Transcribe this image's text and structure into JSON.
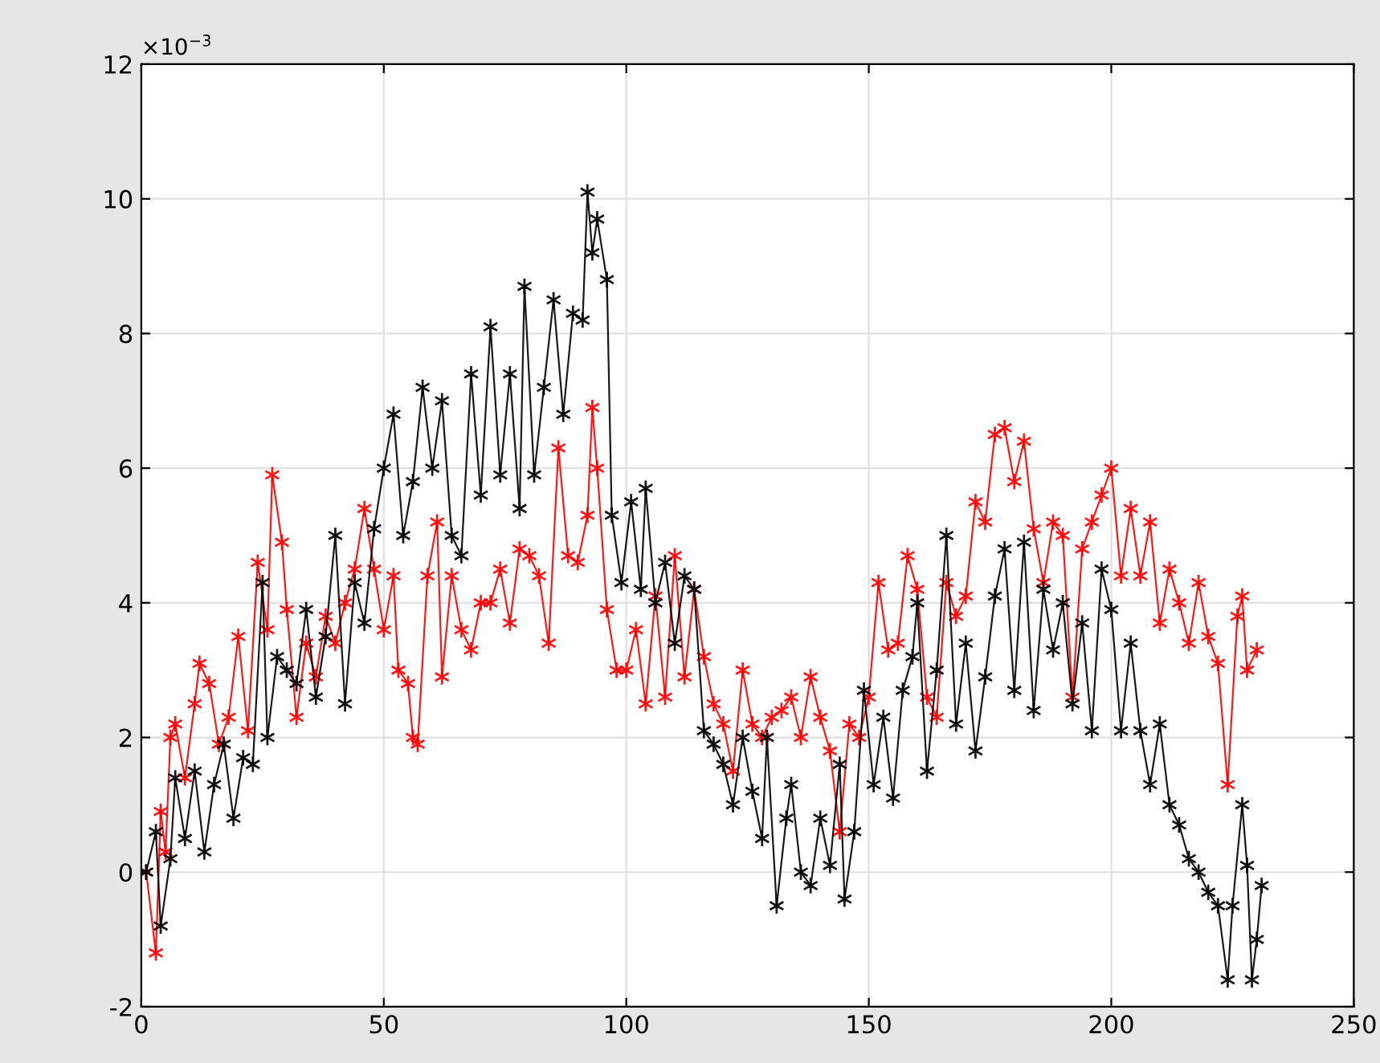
{
  "chart_data": {
    "type": "line",
    "marker": "cross",
    "grid": true,
    "xlim": [
      0,
      250
    ],
    "xticks": [
      0,
      50,
      100,
      150,
      200,
      250
    ],
    "ylim": [
      -2,
      12
    ],
    "yticks": [
      -2,
      0,
      2,
      4,
      6,
      8,
      10,
      12
    ],
    "annotations": [
      "×10$^{−3}$"
    ],
    "series": [
      {
        "color": "#ff0000",
        "x": [
          1,
          3,
          4,
          5,
          6,
          7,
          9,
          11,
          12,
          14,
          16,
          18,
          20,
          22,
          24,
          26,
          27,
          29,
          30,
          32,
          34,
          36,
          38,
          40,
          42,
          44,
          46,
          48,
          50,
          52,
          53,
          55,
          56,
          57,
          59,
          61,
          62,
          64,
          66,
          68,
          70,
          72,
          74,
          76,
          78,
          80,
          82,
          84,
          86,
          88,
          90,
          92,
          93,
          94,
          96,
          98,
          100,
          102,
          104,
          106,
          108,
          110,
          112,
          114,
          116,
          118,
          120,
          122,
          124,
          126,
          128,
          130,
          132,
          134,
          136,
          138,
          140,
          142,
          144,
          146,
          148,
          150,
          152,
          154,
          156,
          158,
          160,
          162,
          164,
          166,
          168,
          170,
          172,
          174,
          176,
          178,
          180,
          182,
          184,
          186,
          188,
          190,
          192,
          194,
          196,
          198,
          200,
          202,
          204,
          206,
          208,
          210,
          212,
          214,
          216,
          218,
          220,
          222,
          224,
          226,
          227,
          228,
          230
        ],
        "values": [
          0.0,
          -1.2,
          0.9,
          0.3,
          2.0,
          2.2,
          1.4,
          2.5,
          3.1,
          2.8,
          1.9,
          2.3,
          3.5,
          2.1,
          4.6,
          3.6,
          5.9,
          4.9,
          3.9,
          2.3,
          3.4,
          2.9,
          3.8,
          3.4,
          4.0,
          4.5,
          5.4,
          4.5,
          3.6,
          4.4,
          3.0,
          2.8,
          2.0,
          1.9,
          4.4,
          5.2,
          2.9,
          4.4,
          3.6,
          3.3,
          4.0,
          4.0,
          4.5,
          3.7,
          4.8,
          4.7,
          4.4,
          3.4,
          6.3,
          4.7,
          4.6,
          5.3,
          6.9,
          6.0,
          3.9,
          3.0,
          3.0,
          3.6,
          2.5,
          4.1,
          2.6,
          4.7,
          2.9,
          4.2,
          3.2,
          2.5,
          2.2,
          1.5,
          3.0,
          2.2,
          2.0,
          2.3,
          2.4,
          2.6,
          2.0,
          2.9,
          2.3,
          1.8,
          0.6,
          2.2,
          2.0,
          2.6,
          4.3,
          3.3,
          3.4,
          4.7,
          4.2,
          2.6,
          2.3,
          4.3,
          3.8,
          4.1,
          5.5,
          5.2,
          6.5,
          6.6,
          5.8,
          6.4,
          5.1,
          4.3,
          5.2,
          5.0,
          2.6,
          4.8,
          5.2,
          5.6,
          6.0,
          4.4,
          5.4,
          4.4,
          5.2,
          3.7,
          4.5,
          4.0,
          3.4,
          4.3,
          3.5,
          3.1,
          1.3,
          3.8,
          4.1,
          3.0,
          3.3
        ]
      },
      {
        "color": "#000000",
        "x": [
          1,
          3,
          4,
          6,
          7,
          9,
          11,
          13,
          15,
          17,
          19,
          21,
          23,
          25,
          26,
          28,
          30,
          32,
          34,
          36,
          38,
          40,
          42,
          44,
          46,
          48,
          50,
          52,
          54,
          56,
          58,
          60,
          62,
          64,
          66,
          68,
          70,
          72,
          74,
          76,
          78,
          79,
          81,
          83,
          85,
          87,
          89,
          91,
          92,
          93,
          94,
          96,
          97,
          99,
          101,
          103,
          104,
          106,
          108,
          110,
          112,
          114,
          116,
          118,
          120,
          122,
          124,
          126,
          128,
          129,
          131,
          133,
          134,
          136,
          138,
          140,
          142,
          144,
          145,
          147,
          149,
          151,
          153,
          155,
          157,
          159,
          160,
          162,
          164,
          166,
          168,
          170,
          172,
          174,
          176,
          178,
          180,
          182,
          184,
          186,
          188,
          190,
          192,
          194,
          196,
          198,
          200,
          202,
          204,
          206,
          208,
          210,
          212,
          214,
          216,
          218,
          220,
          222,
          224,
          225,
          227,
          228,
          229,
          230,
          231
        ],
        "values": [
          0.0,
          0.6,
          -0.8,
          0.2,
          1.4,
          0.5,
          1.5,
          0.3,
          1.3,
          1.9,
          0.8,
          1.7,
          1.6,
          4.3,
          2.0,
          3.2,
          3.0,
          2.8,
          3.9,
          2.6,
          3.5,
          5.0,
          2.5,
          4.3,
          3.7,
          5.1,
          6.0,
          6.8,
          5.0,
          5.8,
          7.2,
          6.0,
          7.0,
          5.0,
          4.7,
          7.4,
          5.6,
          8.1,
          5.9,
          7.4,
          5.4,
          8.7,
          5.9,
          7.2,
          8.5,
          6.8,
          8.3,
          8.2,
          10.1,
          9.2,
          9.7,
          8.8,
          5.3,
          4.3,
          5.5,
          4.2,
          5.7,
          4.0,
          4.6,
          3.4,
          4.4,
          4.2,
          2.1,
          1.9,
          1.6,
          1.0,
          2.0,
          1.2,
          0.5,
          2.0,
          -0.5,
          0.8,
          1.3,
          0.0,
          -0.2,
          0.8,
          0.1,
          1.6,
          -0.4,
          0.6,
          2.7,
          1.3,
          2.3,
          1.1,
          2.7,
          3.2,
          4.0,
          1.5,
          3.0,
          5.0,
          2.2,
          3.4,
          1.8,
          2.9,
          4.1,
          4.8,
          2.7,
          4.9,
          2.4,
          4.2,
          3.3,
          4.0,
          2.5,
          3.7,
          2.1,
          4.5,
          3.9,
          2.1,
          3.4,
          2.1,
          1.3,
          2.2,
          1.0,
          0.7,
          0.2,
          0.0,
          -0.3,
          -0.5,
          -1.6,
          -0.5,
          1.0,
          0.1,
          -1.6,
          -1.0,
          -0.2
        ]
      }
    ]
  }
}
